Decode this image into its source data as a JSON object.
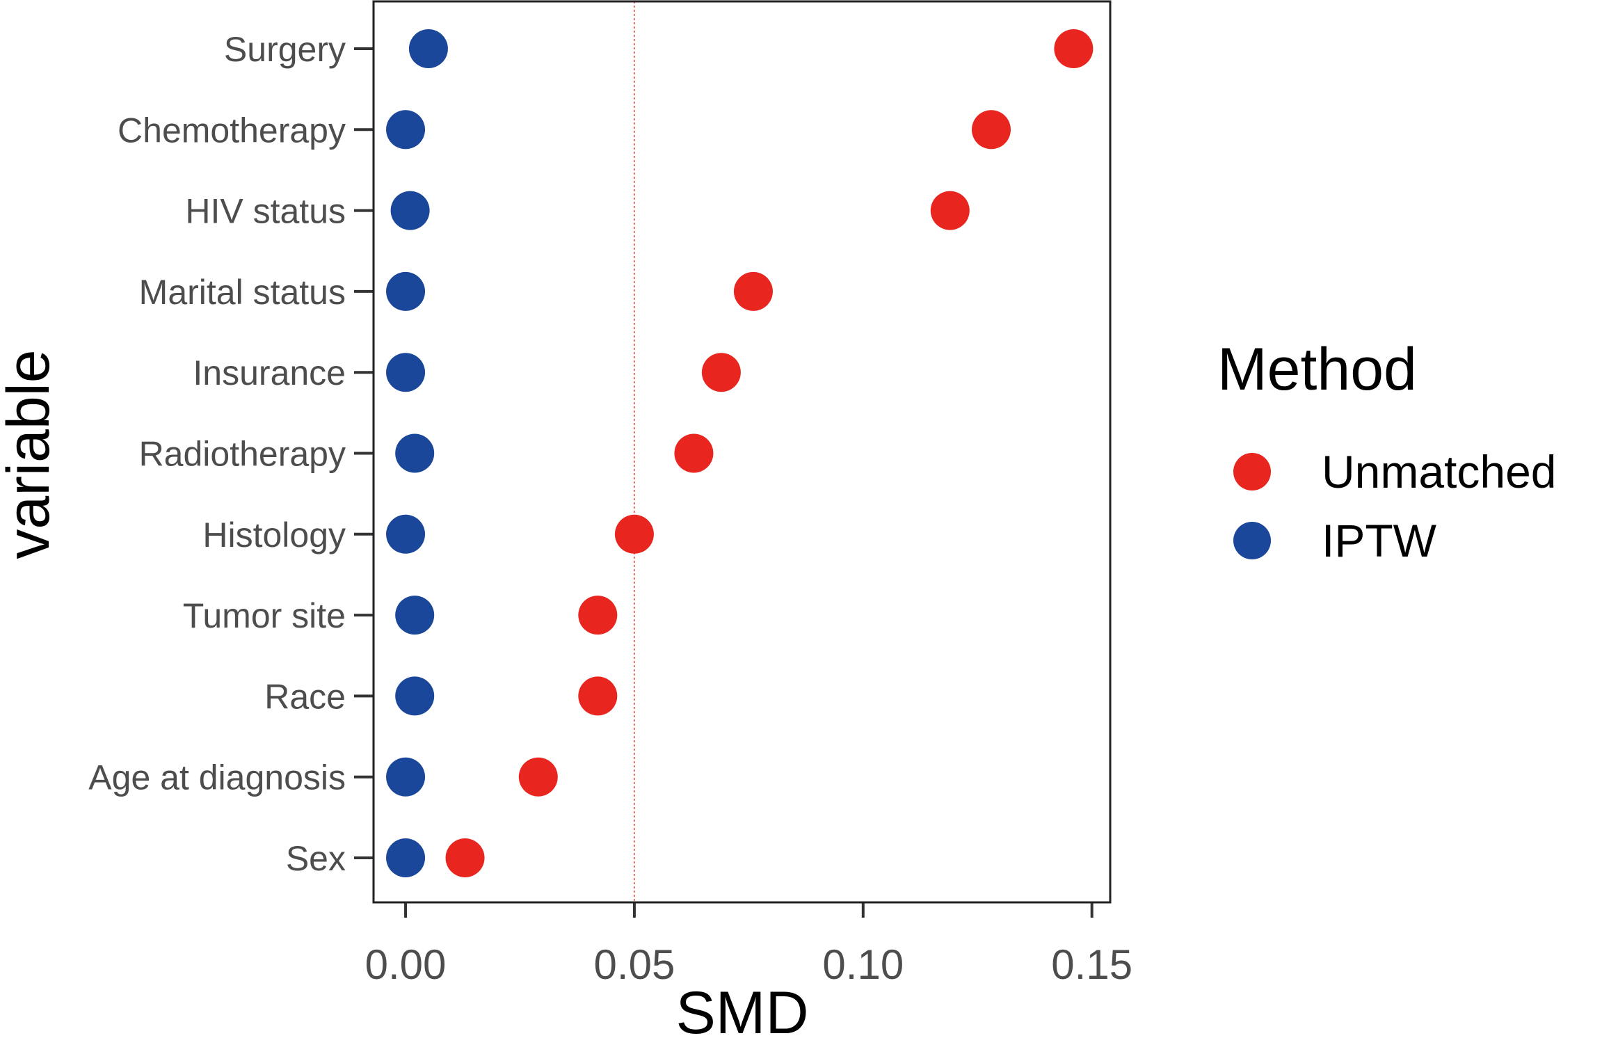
{
  "chart_data": {
    "type": "scatter",
    "xlabel": "SMD",
    "ylabel": "variable",
    "xlim": [
      -0.007,
      0.154
    ],
    "x_ticks": [
      0.0,
      0.05,
      0.1,
      0.15
    ],
    "x_tick_labels": [
      "0.00",
      "0.05",
      "0.10",
      "0.15"
    ],
    "reference_line": {
      "x": 0.05,
      "color": "#e8766d",
      "style": "dotted"
    },
    "grid": false,
    "legend_position": "right",
    "legend_title": "Method",
    "categories": [
      "Surgery",
      "Chemotherapy",
      "HIV status",
      "Marital status",
      "Insurance",
      "Radiotherapy",
      "Histology",
      "Tumor site",
      "Race",
      "Age at diagnosis",
      "Sex"
    ],
    "series": [
      {
        "name": "Unmatched",
        "color": "#e8251f",
        "values": [
          0.146,
          0.128,
          0.119,
          0.076,
          0.069,
          0.063,
          0.05,
          0.042,
          0.042,
          0.029,
          0.013
        ]
      },
      {
        "name": "IPTW",
        "color": "#1b479b",
        "values": [
          0.005,
          0.0,
          0.001,
          0.0,
          0.0,
          0.002,
          0.0,
          0.002,
          0.002,
          0.0,
          0.0
        ]
      }
    ]
  }
}
